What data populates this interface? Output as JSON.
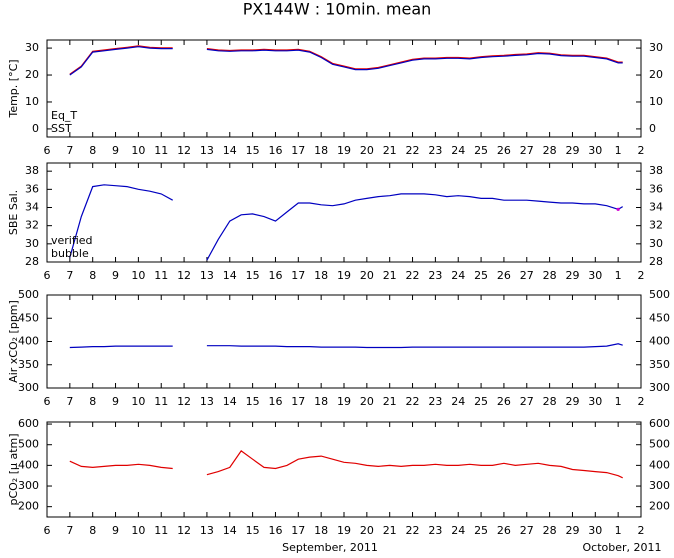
{
  "chart_data": [
    {
      "type": "line",
      "title": "PX144W : 10min. mean",
      "ylabel": "Temp. [°C]",
      "x": [
        7,
        7.5,
        8,
        8.5,
        9,
        9.5,
        10,
        10.5,
        11,
        11.5,
        12,
        12.5,
        13,
        13.5,
        14,
        14.5,
        15,
        15.5,
        16,
        16.5,
        17,
        17.5,
        18,
        18.5,
        19,
        19.5,
        20,
        20.5,
        21,
        21.5,
        22,
        22.5,
        23,
        23.5,
        24,
        24.5,
        25,
        25.5,
        26,
        26.5,
        27,
        27.5,
        28,
        28.5,
        29,
        29.5,
        30,
        30.5,
        31,
        31.2
      ],
      "series": [
        {
          "name": "Eq_T",
          "color": "#e00000",
          "values": [
            20.3,
            23.3,
            28.8,
            29.3,
            29.8,
            30.3,
            30.8,
            30.3,
            30.1,
            30.1,
            null,
            null,
            29.8,
            29.3,
            29.1,
            29.3,
            29.3,
            29.5,
            29.3,
            29.3,
            29.5,
            28.8,
            26.8,
            24.3,
            23.3,
            22.3,
            22.3,
            22.8,
            23.8,
            24.8,
            25.8,
            26.3,
            26.3,
            26.5,
            26.5,
            26.3,
            26.8,
            27.1,
            27.3,
            27.6,
            27.8,
            28.3,
            28.1,
            27.5,
            27.3,
            27.3,
            26.8,
            26.3,
            24.8,
            24.8
          ]
        },
        {
          "name": "SST",
          "color": "#0000c0",
          "values": [
            20,
            23,
            28.5,
            29,
            29.5,
            30,
            30.5,
            30,
            29.8,
            29.8,
            null,
            null,
            29.5,
            29,
            28.8,
            29,
            29,
            29.2,
            29,
            29,
            29.2,
            28.5,
            26.5,
            24,
            23,
            22,
            22,
            22.5,
            23.5,
            24.5,
            25.5,
            26,
            26,
            26.2,
            26.2,
            26,
            26.5,
            26.8,
            27,
            27.3,
            27.5,
            28,
            27.8,
            27.2,
            27,
            27,
            26.5,
            26,
            24.5,
            24.5
          ]
        }
      ],
      "xlim": [
        6,
        32
      ],
      "xticks": [
        6,
        7,
        8,
        9,
        10,
        11,
        12,
        13,
        14,
        15,
        16,
        17,
        18,
        19,
        20,
        21,
        22,
        23,
        24,
        25,
        26,
        27,
        28,
        29,
        30,
        {
          "value": 31,
          "label": "1"
        },
        {
          "value": 32,
          "label": "2"
        }
      ],
      "ylim": [
        -3,
        33
      ],
      "yticks": [
        0,
        10,
        20,
        30
      ],
      "legend": "lower left"
    },
    {
      "type": "line",
      "ylabel": "SBE Sal.",
      "x": [
        7,
        7.5,
        8,
        8.5,
        9,
        9.5,
        10,
        10.5,
        11,
        11.5,
        12,
        12.5,
        13,
        13.5,
        14,
        14.5,
        15,
        15.5,
        16,
        16.5,
        17,
        17.5,
        18,
        18.5,
        19,
        19.5,
        20,
        20.5,
        21,
        21.5,
        22,
        22.5,
        23,
        23.5,
        24,
        24.5,
        25,
        25.5,
        26,
        26.5,
        27,
        27.5,
        28,
        28.5,
        29,
        29.5,
        30,
        30.5,
        31,
        31.2
      ],
      "series": [
        {
          "name": "verified",
          "color": "#0000c0",
          "values": [
            28.5,
            33,
            36.3,
            36.5,
            36.4,
            36.3,
            36,
            35.8,
            35.5,
            34.8,
            null,
            null,
            28.2,
            30.5,
            32.5,
            33.2,
            33.3,
            33,
            32.5,
            33.5,
            34.5,
            34.5,
            34.3,
            34.2,
            34.4,
            34.8,
            35,
            35.2,
            35.3,
            35.5,
            35.5,
            35.5,
            35.4,
            35.2,
            35.3,
            35.2,
            35,
            35,
            34.8,
            34.8,
            34.8,
            34.7,
            34.6,
            34.5,
            34.5,
            34.4,
            34.4,
            34.2,
            33.8,
            34.1
          ]
        },
        {
          "name": "bubble",
          "color": "#d000d0",
          "values": [
            null,
            null,
            null,
            null,
            null,
            null,
            null,
            null,
            null,
            null,
            null,
            null,
            null,
            null,
            null,
            null,
            null,
            null,
            null,
            null,
            null,
            null,
            null,
            null,
            null,
            null,
            null,
            null,
            null,
            null,
            null,
            null,
            null,
            null,
            null,
            null,
            null,
            null,
            null,
            null,
            null,
            null,
            null,
            null,
            null,
            null,
            null,
            null,
            33.8,
            null
          ]
        }
      ],
      "xlim": [
        6,
        32
      ],
      "xticks": [
        6,
        7,
        8,
        9,
        10,
        11,
        12,
        13,
        14,
        15,
        16,
        17,
        18,
        19,
        20,
        21,
        22,
        23,
        24,
        25,
        26,
        27,
        28,
        29,
        30,
        {
          "value": 31,
          "label": "1"
        },
        {
          "value": 32,
          "label": "2"
        }
      ],
      "ylim": [
        28,
        38.9
      ],
      "yticks": [
        28,
        30,
        32,
        34,
        36,
        38
      ],
      "legend": "lower left"
    },
    {
      "type": "line",
      "ylabel": "Air xCO₂ [ppm]",
      "x": [
        7,
        7.5,
        8,
        8.5,
        9,
        9.5,
        10,
        10.5,
        11,
        11.5,
        12,
        12.5,
        13,
        13.5,
        14,
        14.5,
        15,
        15.5,
        16,
        16.5,
        17,
        17.5,
        18,
        18.5,
        19,
        19.5,
        20,
        20.5,
        21,
        21.5,
        22,
        22.5,
        23,
        23.5,
        24,
        24.5,
        25,
        25.5,
        26,
        26.5,
        27,
        27.5,
        28,
        28.5,
        29,
        29.5,
        30,
        30.5,
        31,
        31.2
      ],
      "series": [
        {
          "color": "#0000c0",
          "values": [
            387,
            388,
            389,
            389,
            390,
            390,
            390,
            390,
            390,
            390,
            null,
            null,
            391,
            391,
            391,
            390,
            390,
            390,
            390,
            389,
            389,
            389,
            388,
            388,
            388,
            388,
            387,
            387,
            387,
            387,
            388,
            388,
            388,
            388,
            388,
            388,
            388,
            388,
            388,
            388,
            388,
            388,
            388,
            388,
            388,
            388,
            389,
            390,
            395,
            392
          ]
        }
      ],
      "xlim": [
        6,
        32
      ],
      "xticks": [
        6,
        7,
        8,
        9,
        10,
        11,
        12,
        13,
        14,
        15,
        16,
        17,
        18,
        19,
        20,
        21,
        22,
        23,
        24,
        25,
        26,
        27,
        28,
        29,
        30,
        {
          "value": 31,
          "label": "1"
        },
        {
          "value": 32,
          "label": "2"
        }
      ],
      "ylim": [
        300,
        500
      ],
      "yticks": [
        300,
        350,
        400,
        450,
        500
      ]
    },
    {
      "type": "line",
      "ylabel": "pCO₂ [μ atm]",
      "xlabels": [
        "September, 2011",
        "October, 2011"
      ],
      "x": [
        7,
        7.5,
        8,
        8.5,
        9,
        9.5,
        10,
        10.5,
        11,
        11.5,
        12,
        12.5,
        13,
        13.5,
        14,
        14.5,
        15,
        15.5,
        16,
        16.5,
        17,
        17.5,
        18,
        18.5,
        19,
        19.5,
        20,
        20.5,
        21,
        21.5,
        22,
        22.5,
        23,
        23.5,
        24,
        24.5,
        25,
        25.5,
        26,
        26.5,
        27,
        27.5,
        28,
        28.5,
        29,
        29.5,
        30,
        30.5,
        31,
        31.2
      ],
      "series": [
        {
          "color": "#e00000",
          "values": [
            420,
            395,
            390,
            395,
            400,
            400,
            405,
            400,
            390,
            385,
            null,
            null,
            355,
            370,
            390,
            470,
            430,
            390,
            385,
            400,
            430,
            440,
            445,
            430,
            415,
            410,
            400,
            395,
            400,
            395,
            400,
            400,
            405,
            400,
            400,
            405,
            400,
            400,
            410,
            400,
            405,
            410,
            400,
            395,
            380,
            375,
            370,
            365,
            350,
            340
          ]
        }
      ],
      "xlim": [
        6,
        32
      ],
      "xticks": [
        6,
        7,
        8,
        9,
        10,
        11,
        12,
        13,
        14,
        15,
        16,
        17,
        18,
        19,
        20,
        21,
        22,
        23,
        24,
        25,
        26,
        27,
        28,
        29,
        30,
        {
          "value": 31,
          "label": "1"
        },
        {
          "value": 32,
          "label": "2"
        }
      ],
      "ylim": [
        150,
        610
      ],
      "yticks": [
        200,
        300,
        400,
        500,
        600
      ]
    }
  ]
}
